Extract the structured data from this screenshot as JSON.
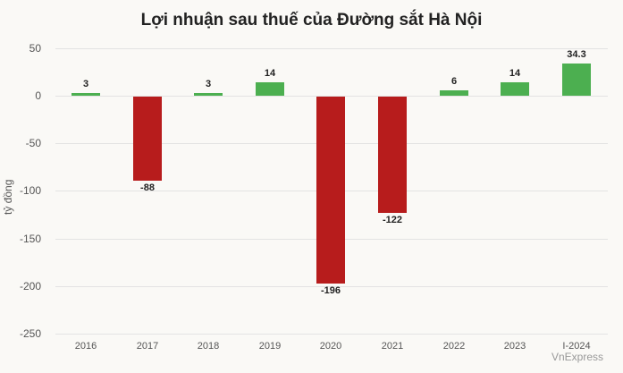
{
  "chart_data": {
    "type": "bar",
    "title": "Lợi nhuận sau thuế của Đường sắt Hà Nội",
    "xlabel": "",
    "ylabel": "tỷ đồng",
    "ylim": [
      -250,
      50
    ],
    "yticks": [
      "50",
      "0",
      "-50",
      "-100",
      "-150",
      "-200",
      "-250"
    ],
    "categories": [
      "2016",
      "2017",
      "2018",
      "2019",
      "2020",
      "2021",
      "2022",
      "2023",
      "I-2024"
    ],
    "values": [
      3,
      -88,
      3,
      14,
      -196,
      -122,
      6,
      14,
      34.3
    ],
    "value_labels": [
      "3",
      "-88",
      "3",
      "14",
      "-196",
      "-122",
      "6",
      "14",
      "34.3"
    ],
    "colors": {
      "positive": "#4caf50",
      "negative": "#b71c1c"
    },
    "grid": true,
    "legend": null
  },
  "source": "VnExpress"
}
